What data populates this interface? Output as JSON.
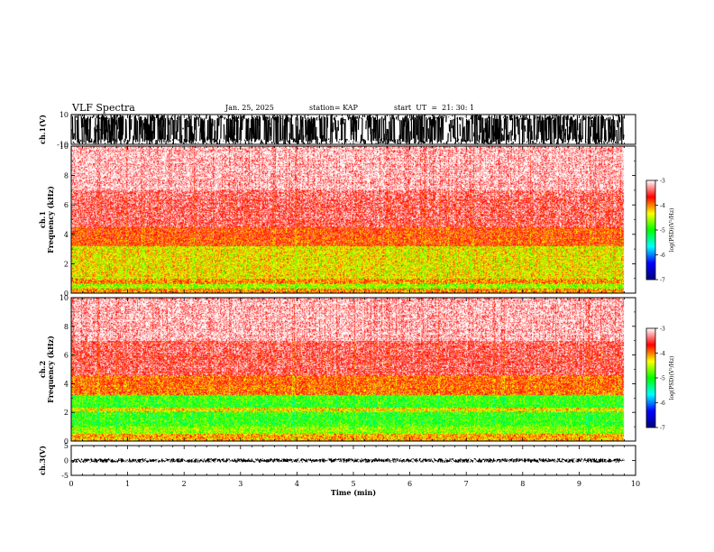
{
  "header": {
    "title": "VLF Spectra",
    "date": "Jan. 25, 2025",
    "station": "station= KAP",
    "start": "start  UT  =  21: 30: 1"
  },
  "chart_data": [
    {
      "type": "line",
      "panel": "waveform",
      "ylabel": "ch.1(V)",
      "ylim": [
        -10,
        10
      ],
      "yticks": [
        "10",
        "-10"
      ],
      "xlim": [
        0,
        10
      ],
      "appearance": "dense clipped waveform between -10 and 10 V from 0 to ~9.8 min",
      "color": "#000000"
    },
    {
      "type": "heatmap",
      "panel": "spectrogram",
      "ylabel_line1": "ch.1",
      "ylabel_line2": "Frequency (kHz)",
      "ylim": [
        0,
        10
      ],
      "yticks": [
        "0",
        "2",
        "4",
        "6",
        "8",
        "10"
      ],
      "xlim": [
        0,
        10
      ],
      "data_end_min": 9.8,
      "colorbar": {
        "label": "log(PSD)(V²/Hz)",
        "range": [
          -7,
          -3
        ],
        "ticks": [
          "-3",
          "-4",
          "-5",
          "-6",
          "-7"
        ],
        "colors": [
          "#000080",
          "#0000ff",
          "#00ffff",
          "#00ff00",
          "#ffff00",
          "#ff0000",
          "#ffffff"
        ]
      },
      "bands_khz": [
        {
          "from": 0,
          "to": 0.3,
          "level": -4.0
        },
        {
          "from": 0.3,
          "to": 0.6,
          "level": -4.6
        },
        {
          "from": 0.6,
          "to": 1.0,
          "level": -4.0
        },
        {
          "from": 1.0,
          "to": 3.2,
          "level": -4.3
        },
        {
          "from": 3.2,
          "to": 4.5,
          "level": -3.8
        },
        {
          "from": 4.5,
          "to": 7.0,
          "level": -3.4
        },
        {
          "from": 7.0,
          "to": 10.0,
          "level": -3.15
        }
      ]
    },
    {
      "type": "heatmap",
      "panel": "spectrogram",
      "ylabel_line1": "ch.2",
      "ylabel_line2": "Frequency (kHz)",
      "ylim": [
        0,
        10
      ],
      "yticks": [
        "0",
        "2",
        "4",
        "6",
        "8",
        "10"
      ],
      "xlim": [
        0,
        10
      ],
      "data_end_min": 9.8,
      "colorbar": {
        "label": "log(PSD)(V²/Hz)",
        "range": [
          -7,
          -3
        ],
        "ticks": [
          "-3",
          "-4",
          "-5",
          "-6",
          "-7"
        ],
        "colors": [
          "#000080",
          "#0000ff",
          "#00ffff",
          "#00ff00",
          "#ffff00",
          "#ff0000",
          "#ffffff"
        ]
      },
      "bands_khz": [
        {
          "from": 0,
          "to": 0.5,
          "level": -4.1
        },
        {
          "from": 0.5,
          "to": 1.0,
          "level": -4.6
        },
        {
          "from": 1.0,
          "to": 2.0,
          "level": -4.9
        },
        {
          "from": 2.0,
          "to": 2.3,
          "level": -4.3
        },
        {
          "from": 2.3,
          "to": 3.2,
          "level": -4.9
        },
        {
          "from": 3.2,
          "to": 4.5,
          "level": -3.9
        },
        {
          "from": 4.5,
          "to": 7.0,
          "level": -3.45
        },
        {
          "from": 7.0,
          "to": 10.0,
          "level": -3.15
        }
      ]
    },
    {
      "type": "line",
      "panel": "waveform",
      "ylabel": "ch.3(V)",
      "ylim": [
        -5,
        5
      ],
      "yticks": [
        "5",
        "0",
        "-5"
      ],
      "xlim": [
        0,
        10
      ],
      "appearance": "thin band of oscillation near 0 V from 0 to ~9.8 min",
      "color": "#000000",
      "xlabel": "Time (min)",
      "xticks": [
        "0",
        "1",
        "2",
        "3",
        "4",
        "5",
        "6",
        "7",
        "8",
        "9",
        "10"
      ]
    }
  ]
}
